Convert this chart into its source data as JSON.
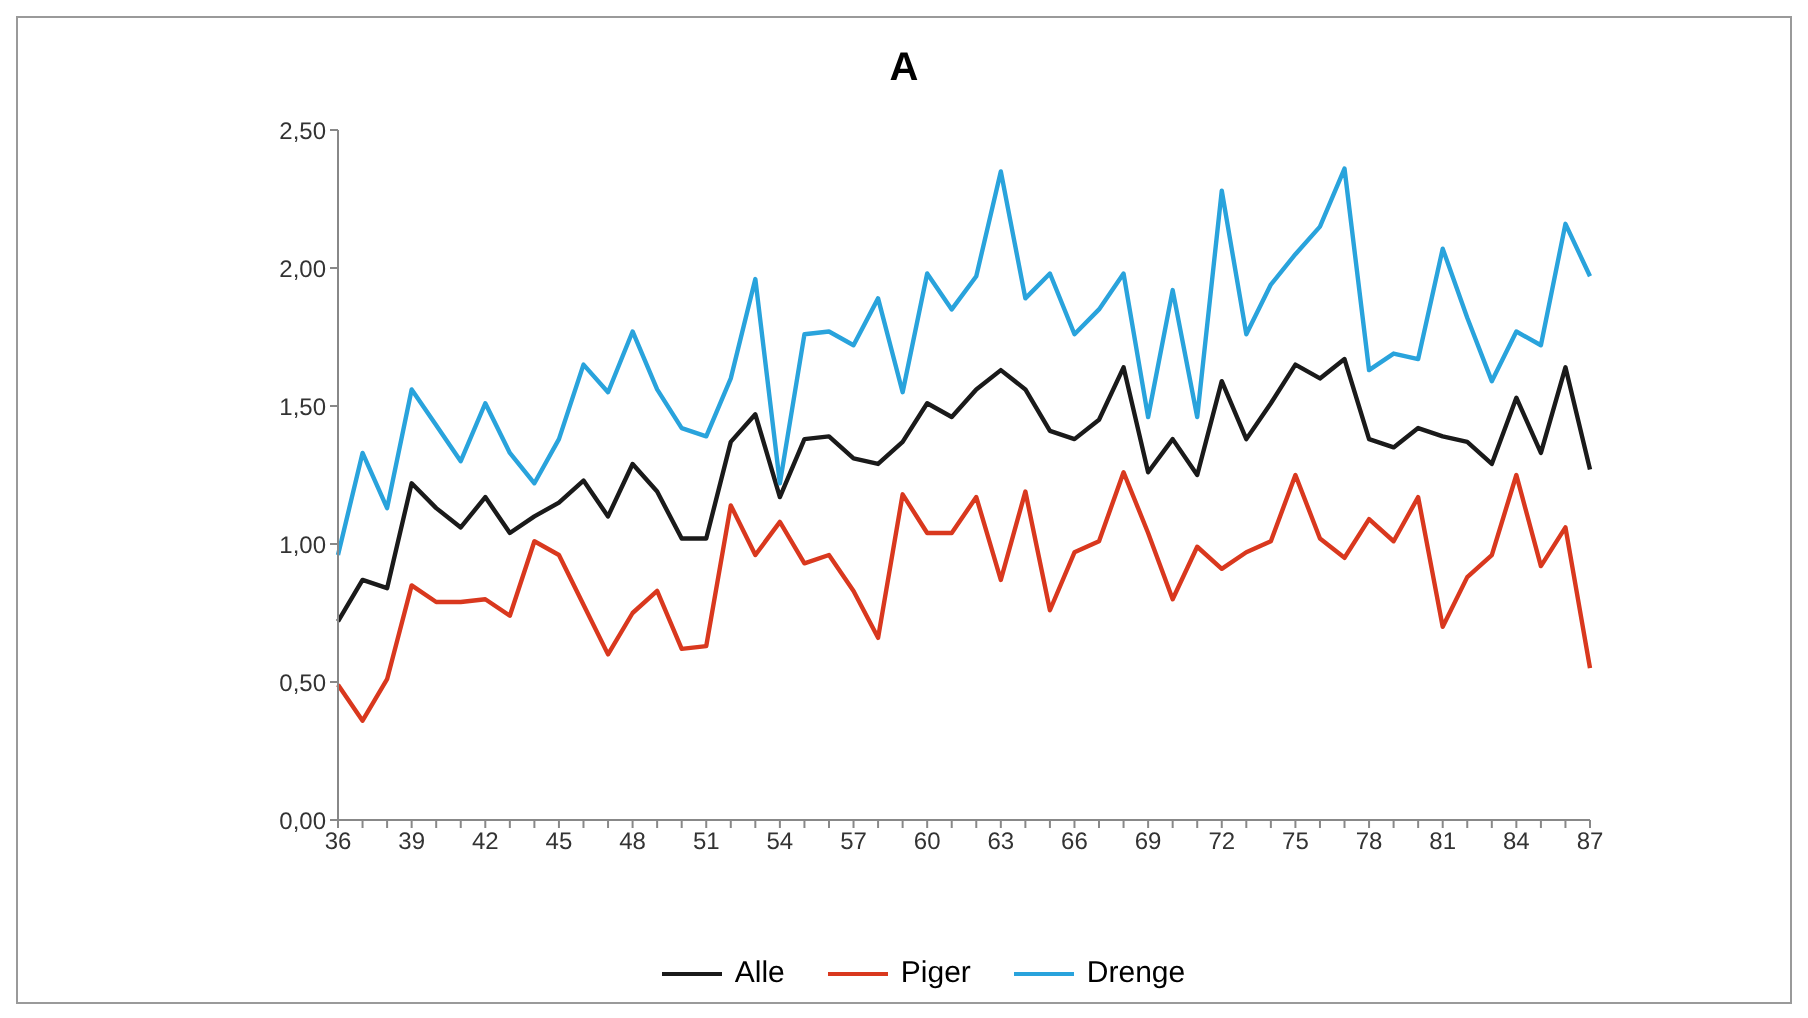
{
  "chart_data": {
    "type": "line",
    "title": "A",
    "categories": [
      "36",
      null,
      null,
      "39",
      null,
      null,
      "42",
      null,
      null,
      "45",
      null,
      null,
      "48",
      null,
      null,
      "51",
      null,
      null,
      "54",
      null,
      null,
      "57",
      null,
      null,
      "60",
      null,
      null,
      "63",
      null,
      null,
      "66",
      null,
      null,
      "69",
      null,
      null,
      "72",
      null,
      null,
      "75",
      null,
      null,
      "78",
      null,
      null,
      "81",
      null,
      null,
      "84",
      null,
      null,
      "87"
    ],
    "series": [
      {
        "name": "Alle",
        "color": "#1a1a1a",
        "values": [
          0.72,
          0.87,
          0.84,
          1.22,
          1.13,
          1.06,
          1.17,
          1.04,
          1.1,
          1.15,
          1.23,
          1.1,
          1.29,
          1.19,
          1.02,
          1.02,
          1.37,
          1.47,
          1.17,
          1.38,
          1.39,
          1.31,
          1.29,
          1.37,
          1.51,
          1.46,
          1.56,
          1.63,
          1.56,
          1.41,
          1.38,
          1.45,
          1.64,
          1.26,
          1.38,
          1.25,
          1.59,
          1.38,
          1.51,
          1.65,
          1.6,
          1.67,
          1.38,
          1.35,
          1.42,
          1.39,
          1.37,
          1.29,
          1.53,
          1.33,
          1.64,
          1.27
        ]
      },
      {
        "name": "Piger",
        "color": "#d9381e",
        "values": [
          0.49,
          0.36,
          0.51,
          0.85,
          0.79,
          0.79,
          0.8,
          0.74,
          1.01,
          0.96,
          0.78,
          0.6,
          0.75,
          0.83,
          0.62,
          0.63,
          1.14,
          0.96,
          1.08,
          0.93,
          0.96,
          0.83,
          0.66,
          1.18,
          1.04,
          1.04,
          1.17,
          0.87,
          1.19,
          0.76,
          0.97,
          1.01,
          1.26,
          1.04,
          0.8,
          0.99,
          0.91,
          0.97,
          1.01,
          1.25,
          1.02,
          0.95,
          1.09,
          1.01,
          1.17,
          0.7,
          0.88,
          0.96,
          1.25,
          0.92,
          1.06,
          0.55
        ]
      },
      {
        "name": "Drenge",
        "color": "#29a3dc",
        "values": [
          0.96,
          1.33,
          1.13,
          1.56,
          1.43,
          1.3,
          1.51,
          1.33,
          1.22,
          1.38,
          1.65,
          1.55,
          1.77,
          1.56,
          1.42,
          1.39,
          1.6,
          1.96,
          1.22,
          1.76,
          1.77,
          1.72,
          1.89,
          1.55,
          1.98,
          1.85,
          1.97,
          2.35,
          1.89,
          1.98,
          1.76,
          1.85,
          1.98,
          1.46,
          1.92,
          1.46,
          2.28,
          1.76,
          1.94,
          2.05,
          2.15,
          2.36,
          1.63,
          1.69,
          1.67,
          2.07,
          1.82,
          1.59,
          1.77,
          1.72,
          2.16,
          1.97
        ]
      }
    ],
    "ylim": [
      0,
      2.5
    ],
    "yticks": [
      {
        "value": 0,
        "label": "0,00"
      },
      {
        "value": 0.5,
        "label": "0,50"
      },
      {
        "value": 1,
        "label": "1,00"
      },
      {
        "value": 1.5,
        "label": "1,50"
      },
      {
        "value": 2,
        "label": "2,00"
      },
      {
        "value": 2.5,
        "label": "2,50"
      }
    ],
    "grid": false,
    "legend": "bottom",
    "marker": "none",
    "line_style": "solid"
  }
}
